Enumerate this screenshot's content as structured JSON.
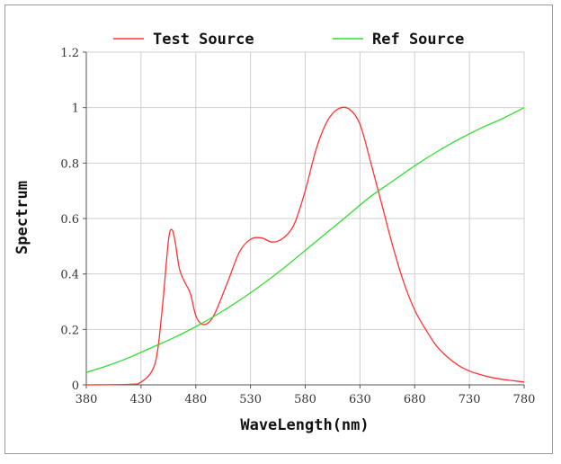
{
  "chart_data": {
    "type": "line",
    "title": "",
    "xlabel": "WaveLength(nm)",
    "ylabel": "Spectrum",
    "xlim": [
      380,
      780
    ],
    "ylim": [
      0,
      1.2
    ],
    "xticks": [
      380,
      430,
      480,
      530,
      580,
      630,
      680,
      730,
      780
    ],
    "yticks": [
      0,
      0.2,
      0.4,
      0.6,
      0.8,
      1,
      1.2
    ],
    "ytick_labels": [
      "0",
      "0.2",
      "0.4",
      "0.6",
      "0.8",
      "1",
      "1.2"
    ],
    "grid": true,
    "legend_position": "top",
    "series": [
      {
        "name": "Test Source",
        "color": "#ff3333",
        "points": [
          [
            380,
            0
          ],
          [
            420,
            0.002
          ],
          [
            430,
            0.01
          ],
          [
            440,
            0.05
          ],
          [
            445,
            0.12
          ],
          [
            450,
            0.3
          ],
          [
            455,
            0.52
          ],
          [
            458,
            0.56
          ],
          [
            461,
            0.52
          ],
          [
            465,
            0.42
          ],
          [
            470,
            0.37
          ],
          [
            475,
            0.33
          ],
          [
            480,
            0.25
          ],
          [
            485,
            0.22
          ],
          [
            490,
            0.22
          ],
          [
            495,
            0.24
          ],
          [
            500,
            0.28
          ],
          [
            510,
            0.38
          ],
          [
            520,
            0.48
          ],
          [
            530,
            0.525
          ],
          [
            540,
            0.53
          ],
          [
            550,
            0.515
          ],
          [
            560,
            0.53
          ],
          [
            570,
            0.58
          ],
          [
            580,
            0.7
          ],
          [
            590,
            0.85
          ],
          [
            600,
            0.95
          ],
          [
            610,
            0.995
          ],
          [
            620,
            0.995
          ],
          [
            630,
            0.94
          ],
          [
            640,
            0.8
          ],
          [
            650,
            0.65
          ],
          [
            660,
            0.5
          ],
          [
            670,
            0.37
          ],
          [
            680,
            0.27
          ],
          [
            690,
            0.2
          ],
          [
            700,
            0.14
          ],
          [
            710,
            0.1
          ],
          [
            720,
            0.07
          ],
          [
            730,
            0.05
          ],
          [
            740,
            0.037
          ],
          [
            750,
            0.027
          ],
          [
            760,
            0.02
          ],
          [
            770,
            0.015
          ],
          [
            780,
            0.01
          ]
        ]
      },
      {
        "name": "Ref Source",
        "color": "#33dd33",
        "points": [
          [
            380,
            0.045
          ],
          [
            400,
            0.07
          ],
          [
            420,
            0.1
          ],
          [
            440,
            0.135
          ],
          [
            460,
            0.17
          ],
          [
            480,
            0.21
          ],
          [
            500,
            0.255
          ],
          [
            520,
            0.305
          ],
          [
            540,
            0.36
          ],
          [
            560,
            0.42
          ],
          [
            580,
            0.485
          ],
          [
            600,
            0.55
          ],
          [
            620,
            0.615
          ],
          [
            640,
            0.68
          ],
          [
            660,
            0.735
          ],
          [
            680,
            0.79
          ],
          [
            700,
            0.84
          ],
          [
            720,
            0.885
          ],
          [
            740,
            0.925
          ],
          [
            760,
            0.96
          ],
          [
            780,
            1.0
          ]
        ]
      }
    ]
  }
}
